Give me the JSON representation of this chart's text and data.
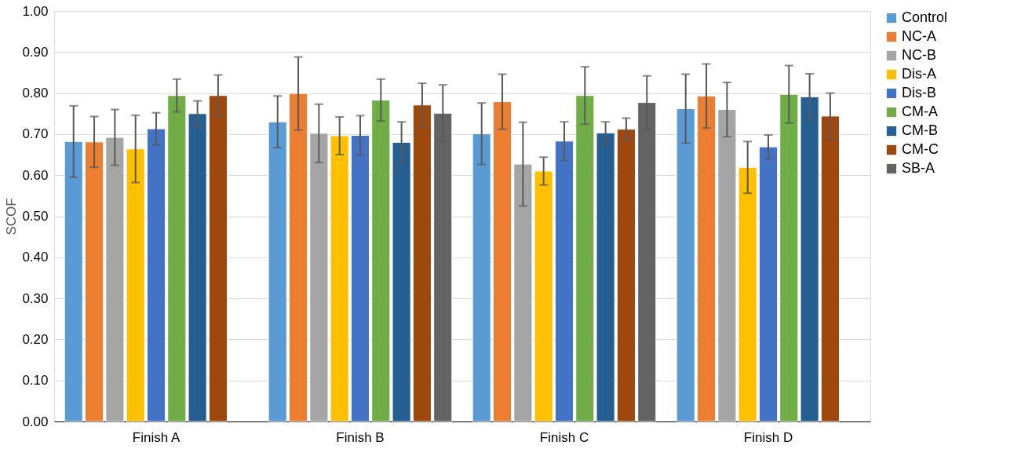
{
  "chart_data": {
    "type": "bar",
    "ylabel": "SCOF",
    "categories": [
      "Finish A",
      "Finish B",
      "Finish C",
      "Finish D"
    ],
    "ylim": [
      0,
      1
    ],
    "yticks": [
      {
        "value": 0,
        "label": "0.00"
      },
      {
        "value": 0.1,
        "label": "0.10"
      },
      {
        "value": 0.2,
        "label": "0.20"
      },
      {
        "value": 0.3,
        "label": "0.30"
      },
      {
        "value": 0.4,
        "label": "0.40"
      },
      {
        "value": 0.5,
        "label": "0.50"
      },
      {
        "value": 0.6,
        "label": "0.60"
      },
      {
        "value": 0.7,
        "label": "0.70"
      },
      {
        "value": 0.8,
        "label": "0.80"
      },
      {
        "value": 0.9,
        "label": "0.90"
      },
      {
        "value": 1,
        "label": "1.00"
      }
    ],
    "grid": "y",
    "legend": "right",
    "series": [
      {
        "name": "Control",
        "color": "#5b9bd5",
        "values": [
          0.682,
          0.73,
          0.701,
          0.762
        ],
        "errors": [
          0.087,
          0.063,
          0.075,
          0.084
        ]
      },
      {
        "name": "NC-A",
        "color": "#ed7d31",
        "values": [
          0.681,
          0.799,
          0.779,
          0.793
        ],
        "errors": [
          0.062,
          0.089,
          0.067,
          0.078
        ]
      },
      {
        "name": "NC-B",
        "color": "#a5a5a5",
        "values": [
          0.692,
          0.702,
          0.627,
          0.76
        ],
        "errors": [
          0.068,
          0.071,
          0.102,
          0.066
        ]
      },
      {
        "name": "Dis-A",
        "color": "#ffc000",
        "values": [
          0.664,
          0.696,
          0.61,
          0.619
        ],
        "errors": [
          0.082,
          0.046,
          0.034,
          0.063
        ]
      },
      {
        "name": "Dis-B",
        "color": "#4472c4",
        "values": [
          0.713,
          0.697,
          0.683,
          0.669
        ],
        "errors": [
          0.039,
          0.048,
          0.047,
          0.029
        ]
      },
      {
        "name": "CM-A",
        "color": "#70ad47",
        "values": [
          0.794,
          0.783,
          0.794,
          0.797
        ],
        "errors": [
          0.04,
          0.051,
          0.07,
          0.07
        ]
      },
      {
        "name": "CM-B",
        "color": "#255e91",
        "values": [
          0.75,
          0.68,
          0.703,
          0.791
        ],
        "errors": [
          0.031,
          0.05,
          0.027,
          0.056
        ]
      },
      {
        "name": "CM-C",
        "color": "#9e480e",
        "values": [
          0.794,
          0.771,
          0.712,
          0.744
        ],
        "errors": [
          0.05,
          0.053,
          0.027,
          0.056
        ]
      },
      {
        "name": "SB-A",
        "color": "#636363",
        "values": [
          null,
          0.751,
          0.777,
          null
        ],
        "errors": [
          null,
          0.069,
          0.065,
          null
        ]
      }
    ]
  }
}
